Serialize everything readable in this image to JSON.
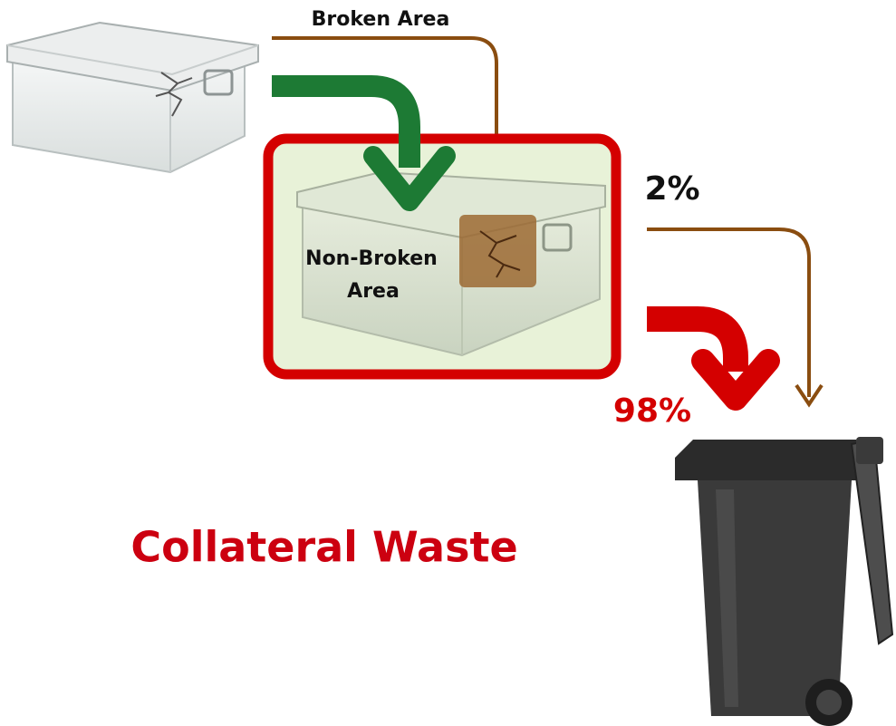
{
  "broken_label": "Broken Area",
  "non_broken_label": [
    "Non-Broken",
    "Area"
  ],
  "small_share": "2%",
  "large_share": "98%",
  "title": "Collateral Waste"
}
